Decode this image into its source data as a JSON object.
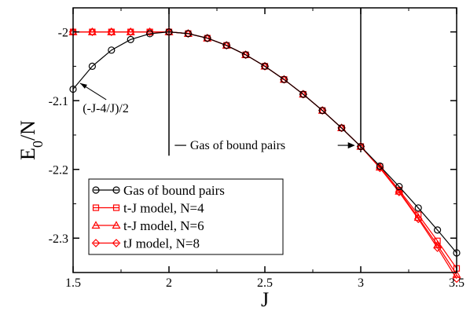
{
  "chart_data": {
    "type": "line",
    "xlabel": "J",
    "ylabel_main": "E",
    "ylabel_sub": "0",
    "ylabel_tail": "/N",
    "xlim": [
      1.5,
      3.5
    ],
    "ylim": [
      -2.35,
      -1.965
    ],
    "x_ticks": [
      1.5,
      2,
      2.5,
      3,
      3.5
    ],
    "x_tick_labels": [
      "1.5",
      "2",
      "2.5",
      "3",
      "3.5"
    ],
    "y_ticks": [
      -2.3,
      -2.2,
      -2.1,
      -2
    ],
    "y_tick_labels": [
      "-2.3",
      "-2.2",
      "-2.1",
      "-2"
    ],
    "legend_position": "bottom-left",
    "series": [
      {
        "name": "Gas of bound pairs",
        "color": "#000000",
        "marker": "circle",
        "x": [
          1.5,
          1.6,
          1.7,
          1.8,
          1.9,
          2.0,
          2.1,
          2.2,
          2.3,
          2.4,
          2.5,
          2.6,
          2.7,
          2.8,
          2.9,
          3.0,
          3.1,
          3.2,
          3.3,
          3.4,
          3.5
        ],
        "y": [
          -2.0833,
          -2.05,
          -2.0265,
          -2.0111,
          -2.0026,
          -2.0,
          -2.0024,
          -2.0091,
          -2.0196,
          -2.0333,
          -2.05,
          -2.0692,
          -2.0907,
          -2.1143,
          -2.1397,
          -2.1667,
          -2.1952,
          -2.225,
          -2.2561,
          -2.2882,
          -2.3214
        ]
      },
      {
        "name": "t-J model, N=4",
        "color": "#ff0000",
        "marker": "square",
        "x": [
          1.5,
          1.6,
          1.7,
          1.8,
          1.9,
          2.0,
          2.1,
          2.2,
          2.3,
          2.4,
          2.5,
          2.6,
          2.7,
          2.8,
          2.9,
          3.0,
          3.1,
          3.2,
          3.3,
          3.4,
          3.5
        ],
        "y": [
          -2.0,
          -2.0,
          -2.0,
          -2.0,
          -2.0,
          -2.0,
          -2.0024,
          -2.0091,
          -2.0196,
          -2.0333,
          -2.05,
          -2.0692,
          -2.0907,
          -2.1143,
          -2.1397,
          -2.1667,
          -2.196,
          -2.23,
          -2.266,
          -2.304,
          -2.344
        ]
      },
      {
        "name": "t-J model, N=6",
        "color": "#ff0000",
        "marker": "triangle",
        "x": [
          1.5,
          1.6,
          1.7,
          1.8,
          1.9,
          2.0,
          2.1,
          2.2,
          2.3,
          2.4,
          2.5,
          2.6,
          2.7,
          2.8,
          2.9,
          3.0,
          3.1,
          3.2,
          3.3,
          3.4,
          3.5
        ],
        "y": [
          -2.0,
          -2.0,
          -2.0,
          -2.0,
          -2.0,
          -2.0,
          -2.0024,
          -2.0091,
          -2.0196,
          -2.0333,
          -2.05,
          -2.0692,
          -2.0907,
          -2.1143,
          -2.1397,
          -2.1667,
          -2.197,
          -2.232,
          -2.27,
          -2.31,
          -2.353
        ]
      },
      {
        "name": "tJ model, N=8",
        "color": "#ff0000",
        "marker": "diamond",
        "x": [
          1.5,
          1.6,
          1.7,
          1.8,
          1.9,
          2.0,
          2.1,
          2.2,
          2.3,
          2.4,
          2.5,
          2.6,
          2.7,
          2.8,
          2.9,
          3.0,
          3.1,
          3.2,
          3.3,
          3.4,
          3.5
        ],
        "y": [
          -2.0,
          -2.0,
          -2.0,
          -2.0,
          -2.0,
          -2.0,
          -2.0024,
          -2.0091,
          -2.0196,
          -2.0333,
          -2.05,
          -2.0692,
          -2.0907,
          -2.1143,
          -2.1397,
          -2.1667,
          -2.198,
          -2.233,
          -2.272,
          -2.314,
          -2.359
        ]
      }
    ],
    "vertical_lines": [
      {
        "x": 2.0,
        "y_from": -1.965,
        "y_to": -2.18
      },
      {
        "x": 3.0,
        "y_from": -1.965,
        "y_to": -2.175
      }
    ],
    "annotations": [
      {
        "text": "(-J-4/J)/2",
        "x": 1.55,
        "y": -2.11,
        "arrow_to": [
          1.52,
          -2.07
        ]
      },
      {
        "text": "Gas of bound pairs",
        "x": 2.11,
        "y": -2.165,
        "bar_from": 2.03,
        "bar_to": 2.09,
        "arrow_from": 2.88,
        "arrow_to": [
          2.97,
          -2.165
        ]
      }
    ]
  }
}
